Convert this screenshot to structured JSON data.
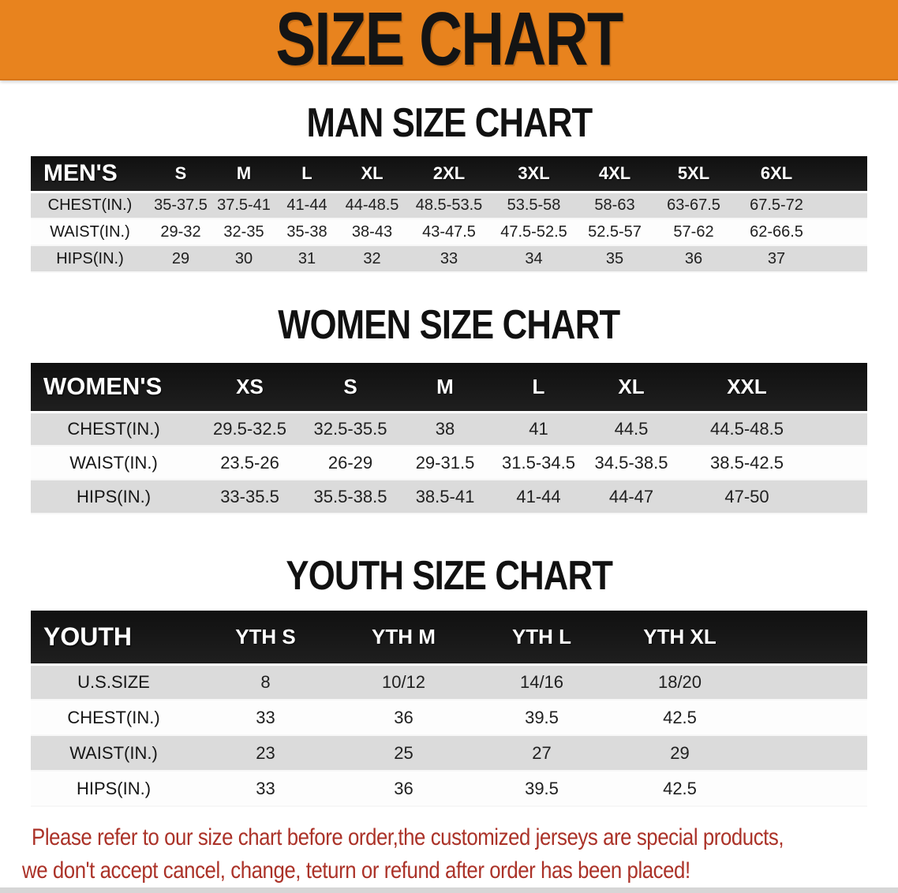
{
  "banner": {
    "title": "SIZE CHART"
  },
  "colors": {
    "banner_bg": "#E8831E",
    "table_header_bg": "#1F1F1F",
    "row_stripe": "#DBDBDB",
    "disclaimer_red": "#AB3228"
  },
  "sections": [
    {
      "id": "men",
      "title": "MAN SIZE CHART",
      "header_label": "MEN'S",
      "columns": [
        "S",
        "M",
        "L",
        "XL",
        "2XL",
        "3XL",
        "4XL",
        "5XL",
        "6XL"
      ],
      "rows": [
        {
          "label": "CHEST(IN.)",
          "values": [
            "35-37.5",
            "37.5-41",
            "41-44",
            "44-48.5",
            "48.5-53.5",
            "53.5-58",
            "58-63",
            "63-67.5",
            "67.5-72"
          ]
        },
        {
          "label": "WAIST(IN.)",
          "values": [
            "29-32",
            "32-35",
            "35-38",
            "38-43",
            "43-47.5",
            "47.5-52.5",
            "52.5-57",
            "57-62",
            "62-66.5"
          ]
        },
        {
          "label": "HIPS(IN.)",
          "values": [
            "29",
            "30",
            "31",
            "32",
            "33",
            "34",
            "35",
            "36",
            "37"
          ]
        }
      ]
    },
    {
      "id": "women",
      "title": "WOMEN SIZE CHART",
      "header_label": "WOMEN'S",
      "columns": [
        "XS",
        "S",
        "M",
        "L",
        "XL",
        "XXL"
      ],
      "rows": [
        {
          "label": "CHEST(IN.)",
          "values": [
            "29.5-32.5",
            "32.5-35.5",
            "38",
            "41",
            "44.5",
            "44.5-48.5"
          ]
        },
        {
          "label": "WAIST(IN.)",
          "values": [
            "23.5-26",
            "26-29",
            "29-31.5",
            "31.5-34.5",
            "34.5-38.5",
            "38.5-42.5"
          ]
        },
        {
          "label": "HIPS(IN.)",
          "values": [
            "33-35.5",
            "35.5-38.5",
            "38.5-41",
            "41-44",
            "44-47",
            "47-50"
          ]
        }
      ]
    },
    {
      "id": "youth",
      "title": "YOUTH SIZE CHART",
      "header_label": "YOUTH",
      "columns": [
        "YTH S",
        "YTH M",
        "YTH L",
        "YTH XL"
      ],
      "rows": [
        {
          "label": "U.S.SIZE",
          "values": [
            "8",
            "10/12",
            "14/16",
            "18/20"
          ]
        },
        {
          "label": "CHEST(IN.)",
          "values": [
            "33",
            "36",
            "39.5",
            "42.5"
          ]
        },
        {
          "label": "WAIST(IN.)",
          "values": [
            "23",
            "25",
            "27",
            "29"
          ]
        },
        {
          "label": "HIPS(IN.)",
          "values": [
            "33",
            "36",
            "39.5",
            "42.5"
          ]
        }
      ]
    }
  ],
  "disclaimer": {
    "line1": "Please refer to our size chart before order,the customized jerseys are special products,",
    "line2": "we don't accept cancel, change, teturn or refund after order has been placed!"
  }
}
